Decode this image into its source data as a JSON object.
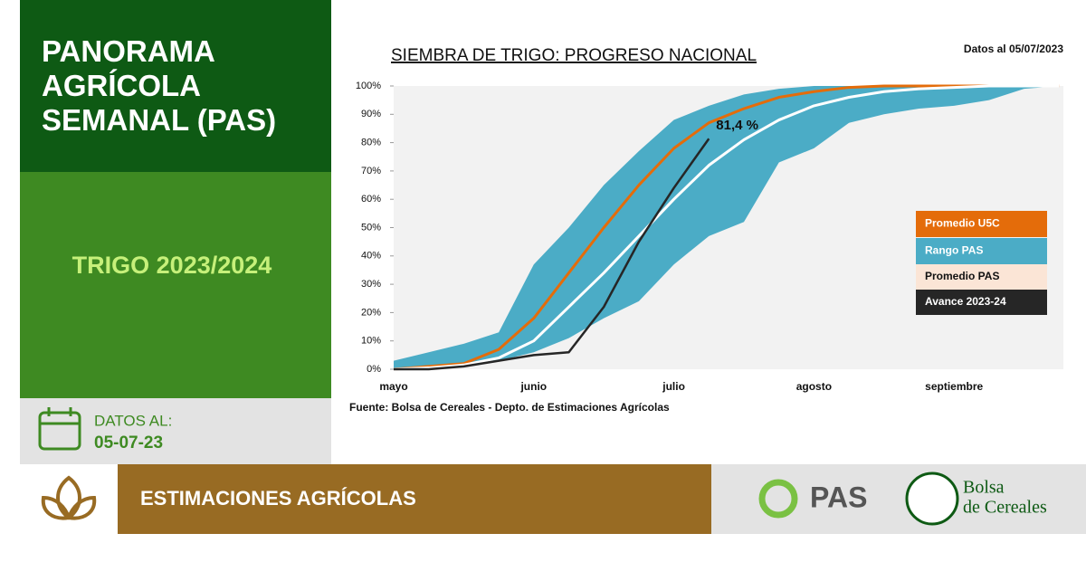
{
  "header": {
    "title": "PANORAMA AGRÍCOLA SEMANAL (PAS)",
    "crop": "TRIGO 2023/2024",
    "date_label": "DATOS AL:",
    "date": "05-07-23"
  },
  "footer": {
    "section": "ESTIMACIONES AGRÍCOLAS",
    "logo_pas": "PAS",
    "logo_bolsa_1": "Bolsa",
    "logo_bolsa_2": "de Cereales"
  },
  "chart_data": {
    "type": "line",
    "title": "SIEMBRA DE TRIGO: PROGRESO NACIONAL",
    "subtitle": "Datos al 05/07/2023",
    "source": "Fuente: Bolsa de Cereales - Depto. de Estimaciones Agrícolas",
    "categories": [
      "mayo",
      null,
      null,
      null,
      "junio",
      null,
      null,
      null,
      "julio",
      null,
      null,
      null,
      "agosto",
      null,
      null,
      null,
      "septiembre",
      null,
      null,
      null
    ],
    "ylim": [
      0,
      100
    ],
    "yticks": [
      {
        "value": 0,
        "label": "0%"
      },
      {
        "value": 10,
        "label": "10%"
      },
      {
        "value": 20,
        "label": "20%"
      },
      {
        "value": 30,
        "label": "30%"
      },
      {
        "value": 40,
        "label": "40%"
      },
      {
        "value": 50,
        "label": "50%"
      },
      {
        "value": 60,
        "label": "60%"
      },
      {
        "value": 70,
        "label": "70%"
      },
      {
        "value": 80,
        "label": "80%"
      },
      {
        "value": 90,
        "label": "90%"
      },
      {
        "value": 100,
        "label": "100%"
      }
    ],
    "series": [
      {
        "name": "Promedio U5C",
        "color": "#e46c0a",
        "values": [
          0,
          1,
          2,
          7,
          18,
          34,
          50,
          65,
          78,
          87,
          92,
          96,
          98,
          99.5,
          100,
          100,
          100,
          100,
          100,
          100
        ]
      },
      {
        "name": "Rango PAS",
        "color": "#4bacc6",
        "values": [
          3,
          6,
          9,
          13,
          37,
          50,
          65,
          77,
          88,
          93,
          97,
          99,
          100,
          100,
          100,
          100,
          100,
          100,
          100,
          100
        ],
        "lower": [
          0,
          0,
          1,
          3,
          6,
          11,
          18,
          24,
          37,
          47,
          52,
          73,
          78,
          87,
          90,
          92,
          93,
          95,
          99,
          100
        ]
      },
      {
        "name": "Promedio PAS",
        "color": "#fbe5d6",
        "values": [
          0,
          0.5,
          1.5,
          4,
          10,
          22,
          34,
          47,
          60,
          72,
          81,
          88,
          93,
          96,
          98,
          99,
          99.5,
          100,
          100,
          100
        ]
      },
      {
        "name": "Avance 2023-24",
        "color": "#262626",
        "values": [
          0,
          0,
          1,
          3,
          5,
          6,
          22,
          45,
          64,
          81.4,
          null,
          null,
          null,
          null,
          null,
          null,
          null,
          null,
          null,
          null
        ],
        "value_labels": [
          null,
          null,
          null,
          null,
          null,
          null,
          null,
          null,
          null,
          "81,4 %",
          null,
          null,
          null,
          null,
          null,
          null,
          null,
          null,
          null,
          null
        ]
      }
    ]
  }
}
